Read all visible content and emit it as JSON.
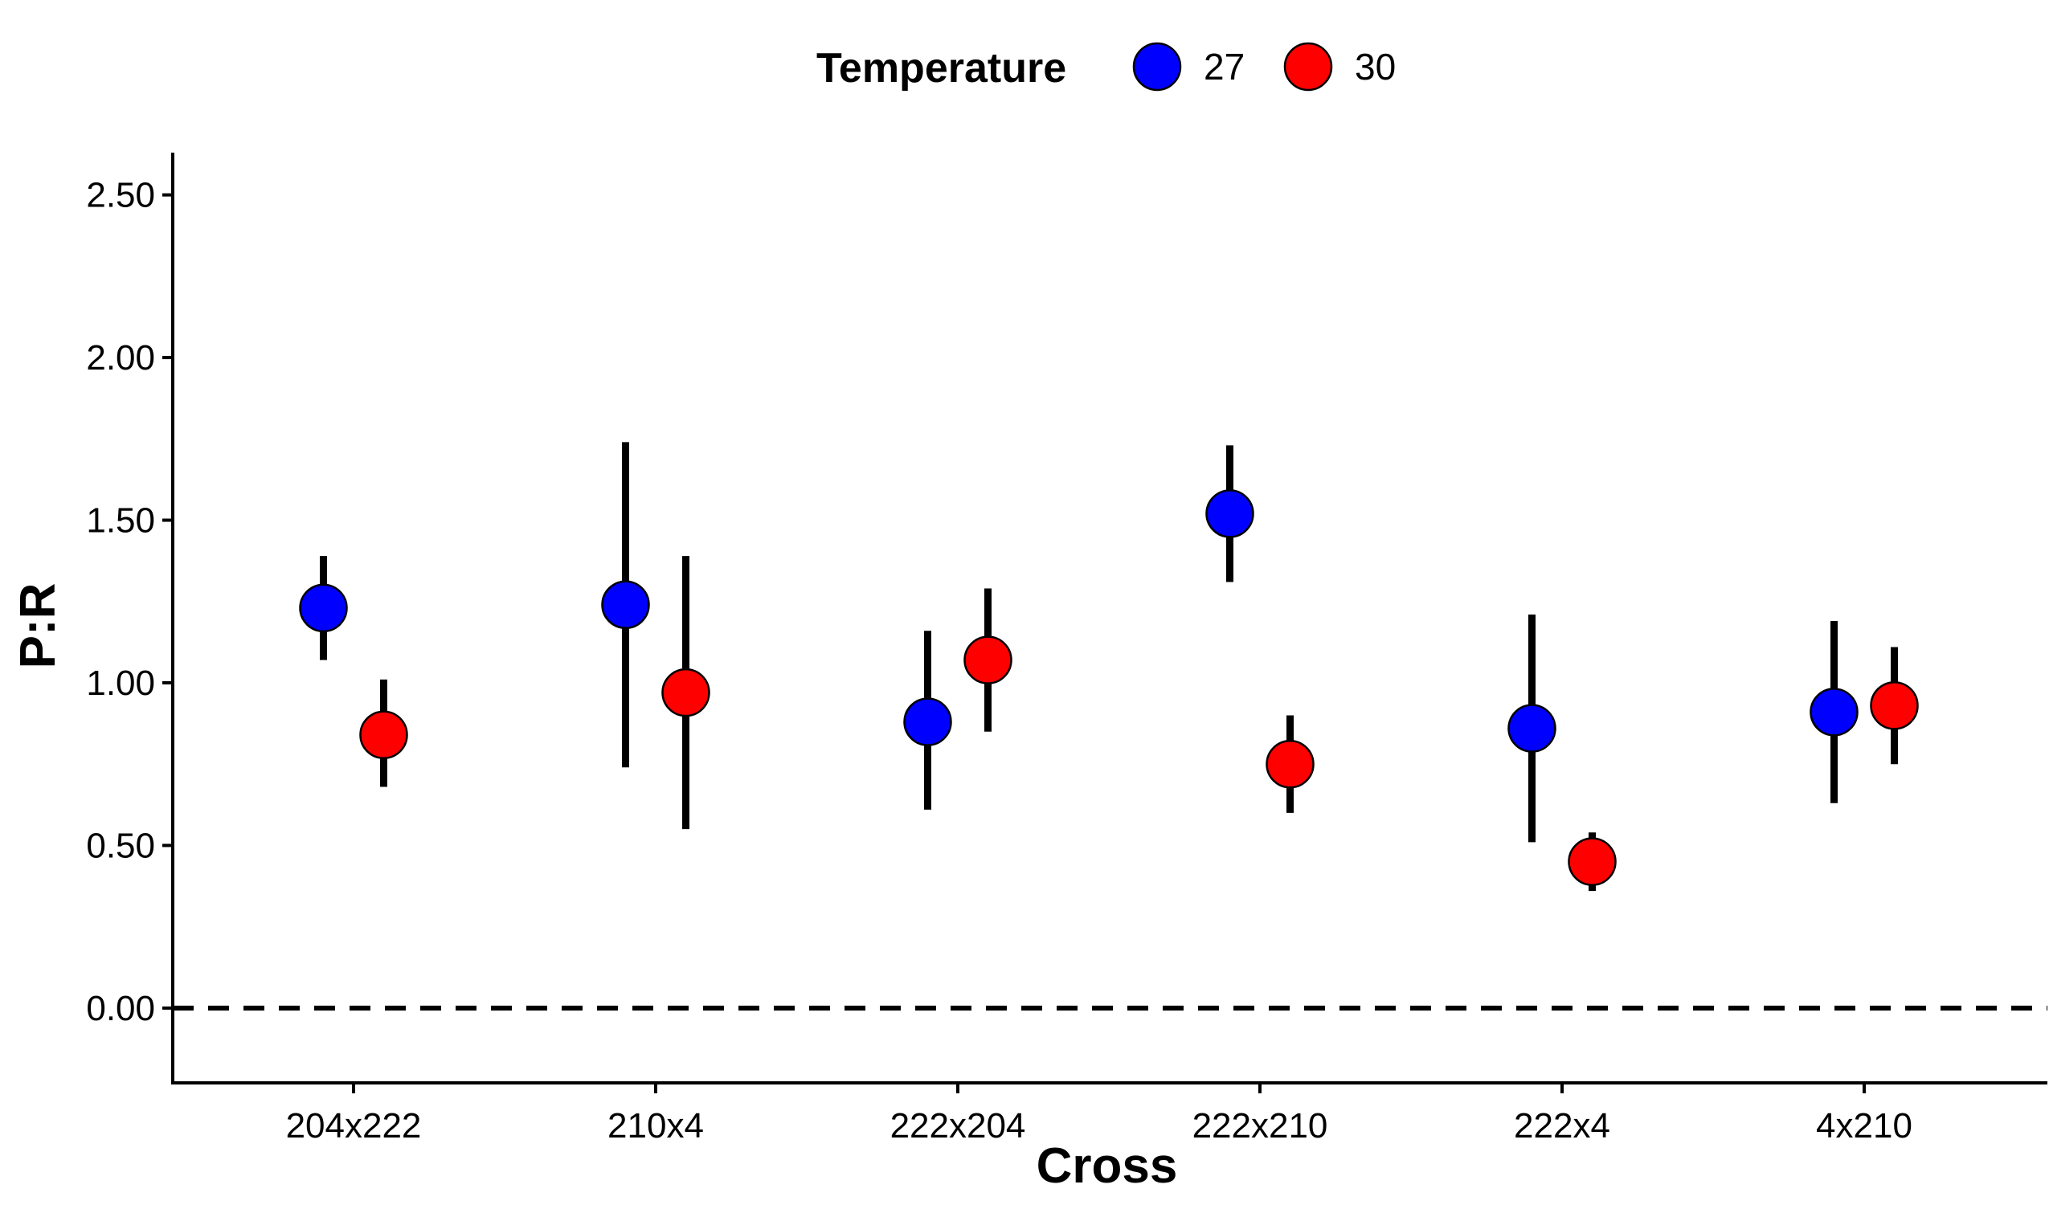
{
  "chart_data": {
    "type": "scatter",
    "subtype": "point-with-errorbars",
    "title": "",
    "xlabel": "Cross",
    "ylabel": "P:R",
    "categories": [
      "204x222",
      "210x4",
      "222x204",
      "222x210",
      "222x4",
      "4x210"
    ],
    "ylim": [
      -0.23,
      2.63
    ],
    "yticks": [
      0.0,
      0.5,
      1.0,
      1.5,
      2.0,
      2.5
    ],
    "ytick_labels": [
      "0.00",
      "0.50",
      "1.00",
      "1.50",
      "2.00",
      "2.50"
    ],
    "grid": false,
    "reference_line": {
      "y": 0.0,
      "style": "dashed"
    },
    "legend": {
      "title": "Temperature",
      "placement": "top"
    },
    "series": [
      {
        "name": "27",
        "color": "#0000ff",
        "values": [
          1.23,
          1.24,
          0.88,
          1.52,
          0.86,
          0.91
        ],
        "error_low": [
          1.07,
          0.74,
          0.61,
          1.31,
          0.51,
          0.63
        ],
        "error_high": [
          1.39,
          1.74,
          1.16,
          1.73,
          1.21,
          1.19
        ]
      },
      {
        "name": "30",
        "color": "#ff0000",
        "values": [
          0.84,
          0.97,
          1.07,
          0.75,
          0.45,
          0.93
        ],
        "error_low": [
          0.68,
          0.55,
          0.85,
          0.6,
          0.36,
          0.75
        ],
        "error_high": [
          1.01,
          1.39,
          1.29,
          0.9,
          0.54,
          1.11
        ]
      }
    ]
  }
}
